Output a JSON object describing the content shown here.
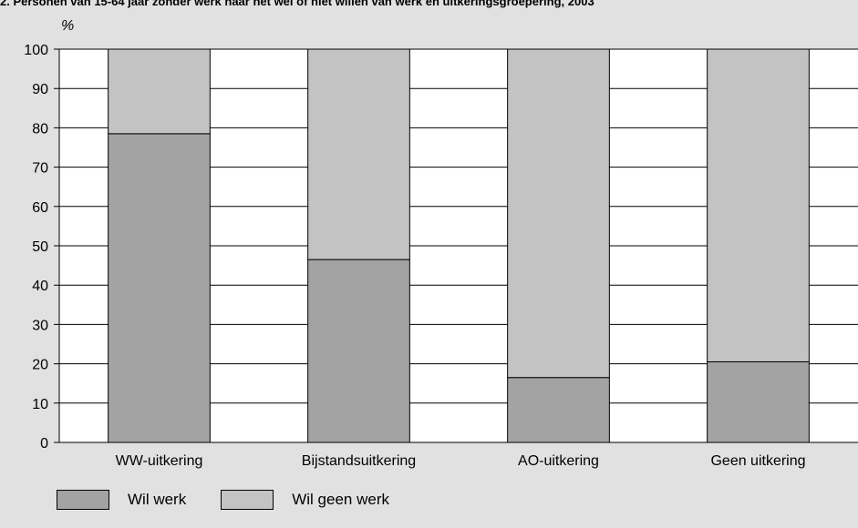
{
  "chart_data": {
    "type": "bar",
    "stacked": true,
    "title": "2. Personen van 15-64 jaar zonder werk naar het wel of niet willen van werk en uitkeringsgroepering, 2003",
    "ylabel": "%",
    "ylim": [
      0,
      100
    ],
    "yticks": [
      0,
      10,
      20,
      30,
      40,
      50,
      60,
      70,
      80,
      90,
      100
    ],
    "grid": true,
    "legend_position": "bottom-left",
    "categories": [
      "WW-uitkering",
      "Bijstandsuitkering",
      "AO-uitkering",
      "Geen uitkering"
    ],
    "series": [
      {
        "name": "Wil werk",
        "color": "#a3a3a3",
        "values": [
          78.5,
          46.5,
          16.5,
          20.5
        ]
      },
      {
        "name": "Wil geen werk",
        "color": "#c3c3c3",
        "values": [
          21.5,
          53.5,
          83.5,
          79.5
        ]
      }
    ]
  }
}
